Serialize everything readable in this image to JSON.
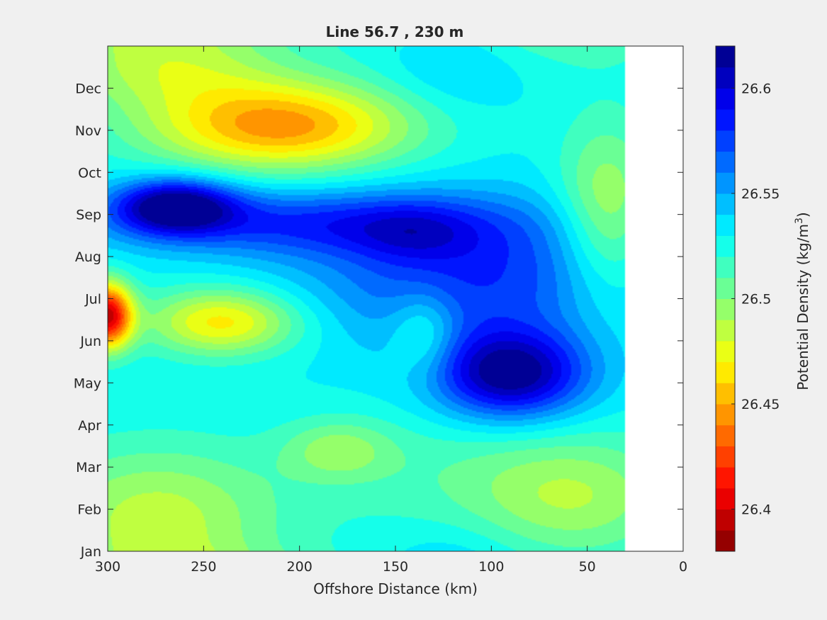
{
  "chart_data": {
    "type": "heatmap",
    "subtype": "filled-contour",
    "title": "Line 56.7 , 230 m",
    "xlabel": "Offshore Distance (km)",
    "ylabel": "",
    "x_reversed": true,
    "xlim": [
      300,
      0
    ],
    "xticks": [
      "300",
      "250",
      "200",
      "150",
      "100",
      "50",
      "0"
    ],
    "xtick_values": [
      300,
      250,
      200,
      150,
      100,
      50,
      0
    ],
    "ylim": [
      0,
      12
    ],
    "yticks": [
      "Jan",
      "Feb",
      "Mar",
      "Apr",
      "May",
      "Jun",
      "Jul",
      "Aug",
      "Sep",
      "Oct",
      "Nov",
      "Dec"
    ],
    "ytick_values": [
      0,
      1,
      2,
      3,
      4,
      5,
      6,
      7,
      8,
      9,
      10,
      11
    ],
    "data_x_extent": [
      300,
      30
    ],
    "colorbar": {
      "label_prefix": "Potential Density (kg/m",
      "label_sup": "3",
      "label_suffix": ")",
      "range": [
        26.38,
        26.62
      ],
      "levels": 24,
      "ticks": [
        "26.4",
        "26.45",
        "26.5",
        "26.55",
        "26.6"
      ],
      "tick_values": [
        26.4,
        26.45,
        26.5,
        26.55,
        26.6
      ],
      "colormap": "jet"
    },
    "background_value": 26.53,
    "features": [
      {
        "x": 300,
        "m": 5.6,
        "sx": 9,
        "sy": 0.55,
        "v": -0.13
      },
      {
        "x": 240,
        "m": 5.45,
        "sx": 28,
        "sy": 0.55,
        "v": -0.065
      },
      {
        "x": 210,
        "m": 10.1,
        "sx": 48,
        "sy": 0.75,
        "v": -0.085
      },
      {
        "x": 265,
        "m": 11.3,
        "sx": 40,
        "sy": 0.6,
        "v": -0.02
      },
      {
        "x": 275,
        "m": 0.8,
        "sx": 45,
        "sy": 1.2,
        "v": -0.045
      },
      {
        "x": 180,
        "m": 2.4,
        "sx": 20,
        "sy": 0.5,
        "v": -0.03
      },
      {
        "x": 55,
        "m": 1.3,
        "sx": 38,
        "sy": 1.0,
        "v": -0.035
      },
      {
        "x": 40,
        "m": 8.0,
        "sx": 18,
        "sy": 1.5,
        "v": -0.045
      },
      {
        "x": 135,
        "m": 5.2,
        "sx": 12,
        "sy": 0.7,
        "v": -0.03
      },
      {
        "x": 120,
        "m": 1.8,
        "sx": 55,
        "sy": 1.2,
        "v": -0.015
      },
      {
        "x": 265,
        "m": 8.2,
        "sx": 22,
        "sy": 0.45,
        "v": 0.09
      },
      {
        "x": 200,
        "m": 7.8,
        "sx": 70,
        "sy": 0.55,
        "v": 0.045
      },
      {
        "x": 140,
        "m": 7.6,
        "sx": 22,
        "sy": 0.5,
        "v": 0.02
      },
      {
        "x": 90,
        "m": 4.2,
        "sx": 28,
        "sy": 0.75,
        "v": 0.09
      },
      {
        "x": 110,
        "m": 6.6,
        "sx": 60,
        "sy": 1.2,
        "v": 0.05
      },
      {
        "x": 120,
        "m": 11.5,
        "sx": 25,
        "sy": 0.8,
        "v": 0.015
      }
    ]
  }
}
